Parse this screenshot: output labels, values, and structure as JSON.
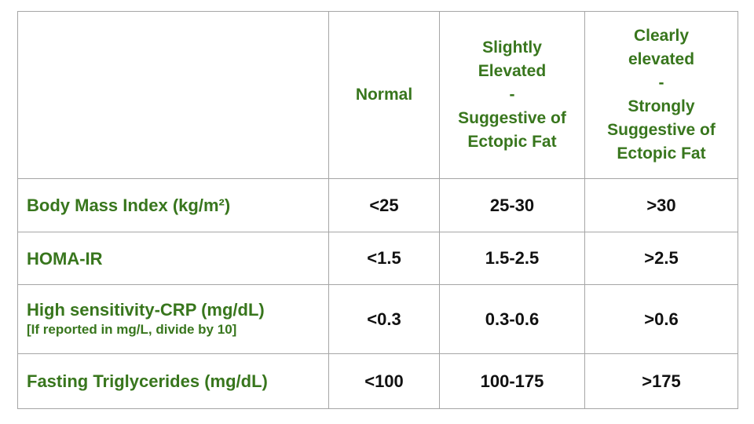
{
  "page": {
    "background": "#ffffff"
  },
  "table": {
    "colors": {
      "header_green": "#38761d",
      "value_black": "#111111",
      "border_gray": "#a6a6a6",
      "background": "#ffffff"
    },
    "headers": {
      "metric": "",
      "normal": "Normal",
      "slightly_elevated": "Slightly\nElevated\n-\nSuggestive of\nEctopic Fat",
      "clearly_elevated": "Clearly\nelevated\n-\nStrongly\nSuggestive of\nEctopic Fat"
    },
    "rows": [
      {
        "label": "Body Mass Index (kg/m²)",
        "note": "",
        "normal": "<25",
        "slightly_elevated": "25-30",
        "clearly_elevated": ">30"
      },
      {
        "label": "HOMA-IR",
        "note": "",
        "normal": "<1.5",
        "slightly_elevated": "1.5-2.5",
        "clearly_elevated": ">2.5"
      },
      {
        "label": "High sensitivity-CRP (mg/dL)",
        "note": "[If reported in mg/L, divide by 10]",
        "normal": "<0.3",
        "slightly_elevated": "0.3-0.6",
        "clearly_elevated": ">0.6"
      },
      {
        "label": "Fasting Triglycerides (mg/dL)",
        "note": "",
        "normal": "<100",
        "slightly_elevated": "100-175",
        "clearly_elevated": ">175"
      }
    ]
  }
}
